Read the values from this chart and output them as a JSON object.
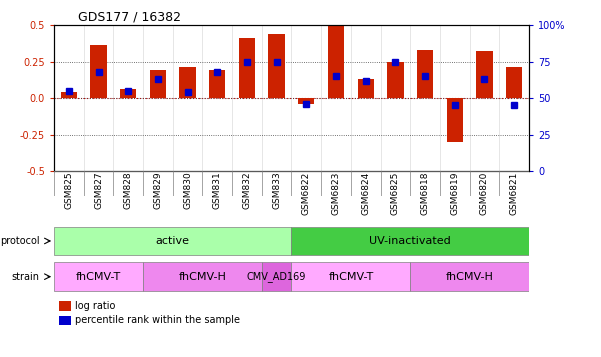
{
  "title": "GDS177 / 16382",
  "samples": [
    "GSM825",
    "GSM827",
    "GSM828",
    "GSM829",
    "GSM830",
    "GSM831",
    "GSM832",
    "GSM833",
    "GSM6822",
    "GSM6823",
    "GSM6824",
    "GSM6825",
    "GSM6818",
    "GSM6819",
    "GSM6820",
    "GSM6821"
  ],
  "log_ratio": [
    0.04,
    0.36,
    0.06,
    0.19,
    0.21,
    0.19,
    0.41,
    0.44,
    -0.04,
    0.5,
    0.13,
    0.25,
    0.33,
    -0.3,
    0.32,
    0.21
  ],
  "pct_rank": [
    55,
    68,
    55,
    63,
    54,
    68,
    75,
    75,
    46,
    65,
    62,
    75,
    65,
    45,
    63,
    45
  ],
  "pct_rank_normalized": [
    0.05,
    0.18,
    0.05,
    0.13,
    0.04,
    0.18,
    0.25,
    0.25,
    -0.04,
    0.15,
    0.12,
    0.25,
    0.15,
    -0.05,
    0.13,
    -0.05
  ],
  "bar_color": "#cc2200",
  "dot_color": "#0000cc",
  "zero_line_color": "#cc0000",
  "dotted_line_color": "#444444",
  "ylim": [
    -0.5,
    0.5
  ],
  "yticks_left": [
    -0.5,
    -0.25,
    0.0,
    0.25,
    0.5
  ],
  "yticks_right": [
    0,
    25,
    50,
    75,
    100
  ],
  "ytick_labels_right": [
    "0",
    "25",
    "50",
    "75",
    "100%"
  ],
  "grid_vals": [
    -0.25,
    0.0,
    0.25
  ],
  "protocol_active_color": "#aaffaa",
  "protocol_uv_color": "#44cc44",
  "strain_fhcmvt_color": "#ffaaff",
  "strain_fhcmvh_color": "#ee88ee",
  "strain_cmvad_color": "#dd66dd",
  "protocol_labels": [
    "active",
    "UV-inactivated"
  ],
  "protocol_ranges": [
    [
      0,
      8
    ],
    [
      8,
      16
    ]
  ],
  "strain_labels": [
    "fhCMV-T",
    "fhCMV-H",
    "CMV_AD169",
    "fhCMV-T",
    "fhCMV-H"
  ],
  "strain_ranges": [
    [
      0,
      3
    ],
    [
      3,
      7
    ],
    [
      7,
      8
    ],
    [
      8,
      12
    ],
    [
      12,
      16
    ]
  ],
  "legend_red": "log ratio",
  "legend_blue": "percentile rank within the sample"
}
